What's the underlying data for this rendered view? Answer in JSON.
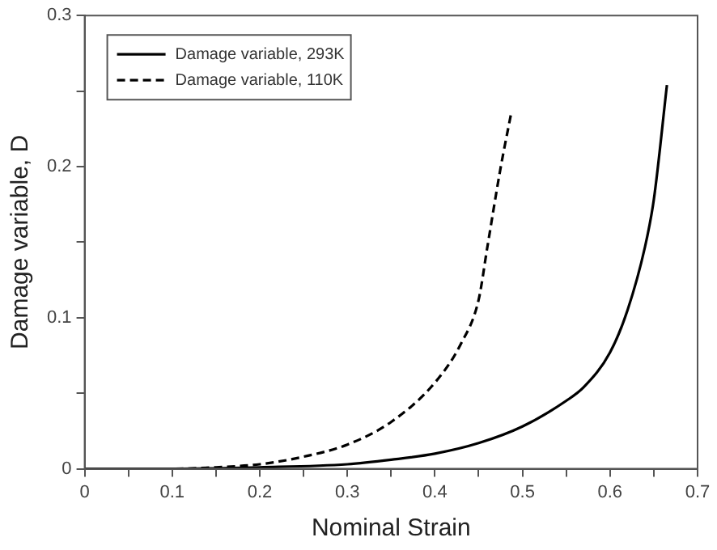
{
  "chart_data": {
    "type": "line",
    "xlabel": "Nominal Strain",
    "ylabel": "Damage variable, D",
    "xlim": [
      0,
      0.7
    ],
    "ylim": [
      0,
      0.3
    ],
    "xticks": [
      0,
      {
        "value": 0.05,
        "label": null
      },
      0.1,
      {
        "value": 0.15,
        "label": null
      },
      0.2,
      {
        "value": 0.25,
        "label": null
      },
      0.3,
      {
        "value": 0.35,
        "label": null
      },
      0.4,
      {
        "value": 0.45,
        "label": null
      },
      0.5,
      {
        "value": 0.55,
        "label": null
      },
      0.6,
      {
        "value": 0.65,
        "label": null
      },
      0.7
    ],
    "yticks": [
      0,
      {
        "value": 0.05,
        "label": null
      },
      0.1,
      {
        "value": 0.15,
        "label": null
      },
      0.2,
      {
        "value": 0.25,
        "label": null
      },
      0.3
    ],
    "grid": false,
    "legend": "top left",
    "marker": "none",
    "series": [
      {
        "name": "Damage variable, 293K",
        "color": "#000000",
        "line_style": "solid",
        "x": [
          0,
          0.1,
          0.2,
          0.3,
          0.35,
          0.4,
          0.45,
          0.5,
          0.55,
          0.57,
          0.6,
          0.62,
          0.64,
          0.65,
          0.665
        ],
        "values": [
          0,
          0,
          0.001,
          0.003,
          0.006,
          0.01,
          0.017,
          0.028,
          0.045,
          0.054,
          0.077,
          0.105,
          0.147,
          0.178,
          0.254
        ]
      },
      {
        "name": "Damage variable, 110K",
        "color": "#000000",
        "line_style": "dashed",
        "x": [
          0,
          0.1,
          0.15,
          0.2,
          0.25,
          0.3,
          0.35,
          0.4,
          0.43,
          0.45,
          0.46,
          0.475,
          0.487
        ],
        "values": [
          0,
          0,
          0.001,
          0.003,
          0.008,
          0.016,
          0.031,
          0.057,
          0.083,
          0.112,
          0.147,
          0.199,
          0.235
        ]
      }
    ]
  }
}
